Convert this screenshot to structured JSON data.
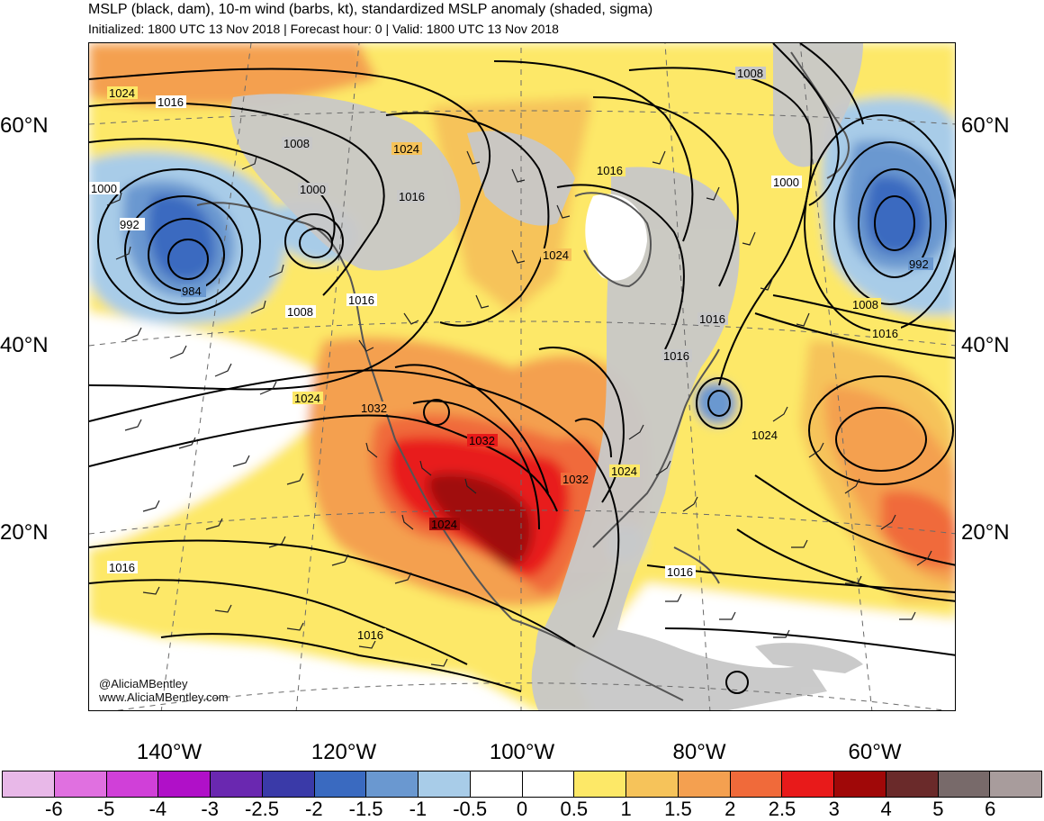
{
  "header": {
    "title": "MSLP (black, dam), 10-m wind (barbs, kt), standardized MSLP anomaly (shaded, sigma)",
    "subtitle": "Initialized: 1800 UTC 13 Nov 2018 | Forecast hour: 0 | Valid: 1800 UTC 13 Nov 2018"
  },
  "map": {
    "lat_labels": [
      "60°N",
      "40°N",
      "20°N"
    ],
    "lon_labels": [
      "140°W",
      "120°W",
      "100°W",
      "80°W",
      "60°W"
    ],
    "contour_labels": [
      "1024",
      "1016",
      "1008",
      "1000",
      "992",
      "984",
      "1000",
      "1016",
      "1008",
      "1024",
      "1016",
      "1024",
      "1016",
      "1008",
      "1000",
      "992",
      "1008",
      "1016",
      "1016",
      "1024",
      "1032",
      "1032",
      "1032",
      "1024",
      "1024",
      "1016",
      "1024",
      "1016",
      "1016",
      "1016"
    ],
    "colors": {
      "land_gray": "#c8c8c8",
      "coast": "#555555",
      "contour": "#000000"
    }
  },
  "credit": {
    "handle": "@AliciaMBentley",
    "site": "www.AliciaMBentley.com"
  },
  "colorbar": {
    "colors": [
      "#e8b8e8",
      "#e070e0",
      "#d040d8",
      "#b010c8",
      "#6a28b0",
      "#3a3aa8",
      "#3a6ac0",
      "#6a98d0",
      "#a8cce8",
      "#ffffff",
      "#ffffff",
      "#fde867",
      "#f6c35a",
      "#f4a050",
      "#f06a3a",
      "#e81a1a",
      "#a00808",
      "#6a2a2a",
      "#786a6a",
      "#a89c9c"
    ],
    "ticks": [
      "-6",
      "-5",
      "-4",
      "-3",
      "-2.5",
      "-2",
      "-1.5",
      "-1",
      "-0.5",
      "0",
      "0.5",
      "1",
      "1.5",
      "2",
      "2.5",
      "3",
      "4",
      "5",
      "6"
    ]
  }
}
